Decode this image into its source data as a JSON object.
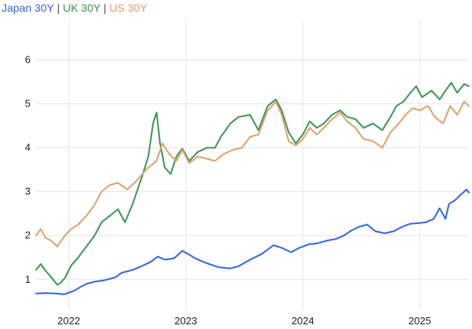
{
  "legend": {
    "separator": " | ",
    "items": [
      {
        "label": "Japan 30Y",
        "color": "#3366e6"
      },
      {
        "label": "UK 30Y",
        "color": "#3e9651"
      },
      {
        "label": "US 30Y",
        "color": "#e0a070"
      }
    ]
  },
  "chart_data": {
    "type": "line",
    "title": "",
    "xlabel": "",
    "ylabel": "",
    "legend_position": "top-left",
    "grid": true,
    "xlim": [
      2021.72,
      2025.42
    ],
    "ylim": [
      0.3,
      6.9
    ],
    "x_ticks": [
      {
        "value": 2022,
        "label": "2022"
      },
      {
        "value": 2023,
        "label": "2023"
      },
      {
        "value": 2024,
        "label": "2024"
      },
      {
        "value": 2025,
        "label": "2025"
      }
    ],
    "y_ticks": [
      {
        "value": 1,
        "label": "1"
      },
      {
        "value": 2,
        "label": "2"
      },
      {
        "value": 3,
        "label": "3"
      },
      {
        "value": 4,
        "label": "4"
      },
      {
        "value": 5,
        "label": "5"
      },
      {
        "value": 6,
        "label": "6"
      }
    ],
    "series": [
      {
        "name": "Japan 30Y",
        "color": "#3366e6",
        "points": [
          [
            2021.72,
            0.68
          ],
          [
            2021.8,
            0.69
          ],
          [
            2021.9,
            0.68
          ],
          [
            2021.96,
            0.66
          ],
          [
            2022.05,
            0.75
          ],
          [
            2022.1,
            0.83
          ],
          [
            2022.15,
            0.9
          ],
          [
            2022.22,
            0.95
          ],
          [
            2022.3,
            0.98
          ],
          [
            2022.4,
            1.05
          ],
          [
            2022.45,
            1.15
          ],
          [
            2022.55,
            1.22
          ],
          [
            2022.62,
            1.3
          ],
          [
            2022.7,
            1.4
          ],
          [
            2022.76,
            1.52
          ],
          [
            2022.82,
            1.45
          ],
          [
            2022.9,
            1.48
          ],
          [
            2022.97,
            1.65
          ],
          [
            2023.02,
            1.58
          ],
          [
            2023.08,
            1.48
          ],
          [
            2023.15,
            1.4
          ],
          [
            2023.2,
            1.35
          ],
          [
            2023.28,
            1.28
          ],
          [
            2023.38,
            1.25
          ],
          [
            2023.45,
            1.3
          ],
          [
            2023.55,
            1.45
          ],
          [
            2023.65,
            1.58
          ],
          [
            2023.75,
            1.78
          ],
          [
            2023.82,
            1.72
          ],
          [
            2023.9,
            1.62
          ],
          [
            2023.97,
            1.72
          ],
          [
            2024.05,
            1.8
          ],
          [
            2024.12,
            1.82
          ],
          [
            2024.2,
            1.88
          ],
          [
            2024.28,
            1.92
          ],
          [
            2024.35,
            2.0
          ],
          [
            2024.42,
            2.12
          ],
          [
            2024.48,
            2.2
          ],
          [
            2024.55,
            2.25
          ],
          [
            2024.62,
            2.1
          ],
          [
            2024.7,
            2.05
          ],
          [
            2024.78,
            2.1
          ],
          [
            2024.85,
            2.2
          ],
          [
            2024.92,
            2.27
          ],
          [
            2024.98,
            2.28
          ],
          [
            2025.05,
            2.3
          ],
          [
            2025.12,
            2.38
          ],
          [
            2025.17,
            2.62
          ],
          [
            2025.22,
            2.38
          ],
          [
            2025.25,
            2.72
          ],
          [
            2025.3,
            2.8
          ],
          [
            2025.36,
            2.95
          ],
          [
            2025.4,
            3.05
          ],
          [
            2025.42,
            2.98
          ]
        ]
      },
      {
        "name": "UK 30Y",
        "color": "#3e9651",
        "points": [
          [
            2021.72,
            1.22
          ],
          [
            2021.76,
            1.35
          ],
          [
            2021.8,
            1.2
          ],
          [
            2021.85,
            1.05
          ],
          [
            2021.9,
            0.88
          ],
          [
            2021.93,
            0.92
          ],
          [
            2021.97,
            1.05
          ],
          [
            2022.02,
            1.32
          ],
          [
            2022.08,
            1.5
          ],
          [
            2022.15,
            1.75
          ],
          [
            2022.22,
            2.0
          ],
          [
            2022.28,
            2.3
          ],
          [
            2022.35,
            2.45
          ],
          [
            2022.42,
            2.6
          ],
          [
            2022.48,
            2.3
          ],
          [
            2022.55,
            2.75
          ],
          [
            2022.62,
            3.3
          ],
          [
            2022.68,
            3.8
          ],
          [
            2022.72,
            4.55
          ],
          [
            2022.75,
            4.8
          ],
          [
            2022.78,
            4.1
          ],
          [
            2022.82,
            3.55
          ],
          [
            2022.87,
            3.4
          ],
          [
            2022.92,
            3.8
          ],
          [
            2022.97,
            3.98
          ],
          [
            2023.03,
            3.7
          ],
          [
            2023.1,
            3.9
          ],
          [
            2023.18,
            4.0
          ],
          [
            2023.25,
            4.0
          ],
          [
            2023.3,
            4.25
          ],
          [
            2023.38,
            4.55
          ],
          [
            2023.45,
            4.7
          ],
          [
            2023.55,
            4.75
          ],
          [
            2023.62,
            4.4
          ],
          [
            2023.7,
            4.95
          ],
          [
            2023.77,
            5.1
          ],
          [
            2023.82,
            4.85
          ],
          [
            2023.88,
            4.35
          ],
          [
            2023.94,
            4.1
          ],
          [
            2024.0,
            4.3
          ],
          [
            2024.06,
            4.6
          ],
          [
            2024.12,
            4.45
          ],
          [
            2024.18,
            4.55
          ],
          [
            2024.25,
            4.75
          ],
          [
            2024.32,
            4.85
          ],
          [
            2024.38,
            4.7
          ],
          [
            2024.45,
            4.65
          ],
          [
            2024.52,
            4.45
          ],
          [
            2024.6,
            4.55
          ],
          [
            2024.68,
            4.4
          ],
          [
            2024.75,
            4.7
          ],
          [
            2024.8,
            4.95
          ],
          [
            2024.86,
            5.05
          ],
          [
            2024.92,
            5.25
          ],
          [
            2024.97,
            5.4
          ],
          [
            2025.02,
            5.15
          ],
          [
            2025.1,
            5.3
          ],
          [
            2025.17,
            5.1
          ],
          [
            2025.22,
            5.3
          ],
          [
            2025.27,
            5.48
          ],
          [
            2025.32,
            5.25
          ],
          [
            2025.38,
            5.45
          ],
          [
            2025.42,
            5.4
          ]
        ]
      },
      {
        "name": "US 30Y",
        "color": "#e0a070",
        "points": [
          [
            2021.72,
            2.0
          ],
          [
            2021.76,
            2.15
          ],
          [
            2021.8,
            1.95
          ],
          [
            2021.85,
            1.88
          ],
          [
            2021.9,
            1.75
          ],
          [
            2021.96,
            1.98
          ],
          [
            2022.02,
            2.15
          ],
          [
            2022.08,
            2.25
          ],
          [
            2022.15,
            2.45
          ],
          [
            2022.22,
            2.7
          ],
          [
            2022.28,
            3.0
          ],
          [
            2022.35,
            3.15
          ],
          [
            2022.42,
            3.2
          ],
          [
            2022.5,
            3.05
          ],
          [
            2022.58,
            3.25
          ],
          [
            2022.66,
            3.5
          ],
          [
            2022.75,
            3.7
          ],
          [
            2022.8,
            4.1
          ],
          [
            2022.86,
            3.85
          ],
          [
            2022.92,
            3.7
          ],
          [
            2022.97,
            3.95
          ],
          [
            2023.03,
            3.65
          ],
          [
            2023.1,
            3.8
          ],
          [
            2023.18,
            3.75
          ],
          [
            2023.25,
            3.7
          ],
          [
            2023.32,
            3.85
          ],
          [
            2023.4,
            3.95
          ],
          [
            2023.48,
            4.0
          ],
          [
            2023.55,
            4.25
          ],
          [
            2023.62,
            4.3
          ],
          [
            2023.7,
            4.85
          ],
          [
            2023.77,
            5.05
          ],
          [
            2023.82,
            4.75
          ],
          [
            2023.88,
            4.15
          ],
          [
            2023.94,
            4.05
          ],
          [
            2024.0,
            4.2
          ],
          [
            2024.06,
            4.45
          ],
          [
            2024.12,
            4.3
          ],
          [
            2024.18,
            4.45
          ],
          [
            2024.25,
            4.65
          ],
          [
            2024.32,
            4.8
          ],
          [
            2024.38,
            4.6
          ],
          [
            2024.45,
            4.45
          ],
          [
            2024.52,
            4.2
          ],
          [
            2024.6,
            4.15
          ],
          [
            2024.68,
            4.0
          ],
          [
            2024.75,
            4.35
          ],
          [
            2024.82,
            4.55
          ],
          [
            2024.88,
            4.75
          ],
          [
            2024.94,
            4.9
          ],
          [
            2025.0,
            4.85
          ],
          [
            2025.07,
            4.95
          ],
          [
            2025.13,
            4.7
          ],
          [
            2025.2,
            4.55
          ],
          [
            2025.26,
            4.95
          ],
          [
            2025.32,
            4.75
          ],
          [
            2025.38,
            5.05
          ],
          [
            2025.42,
            4.95
          ]
        ]
      }
    ]
  }
}
